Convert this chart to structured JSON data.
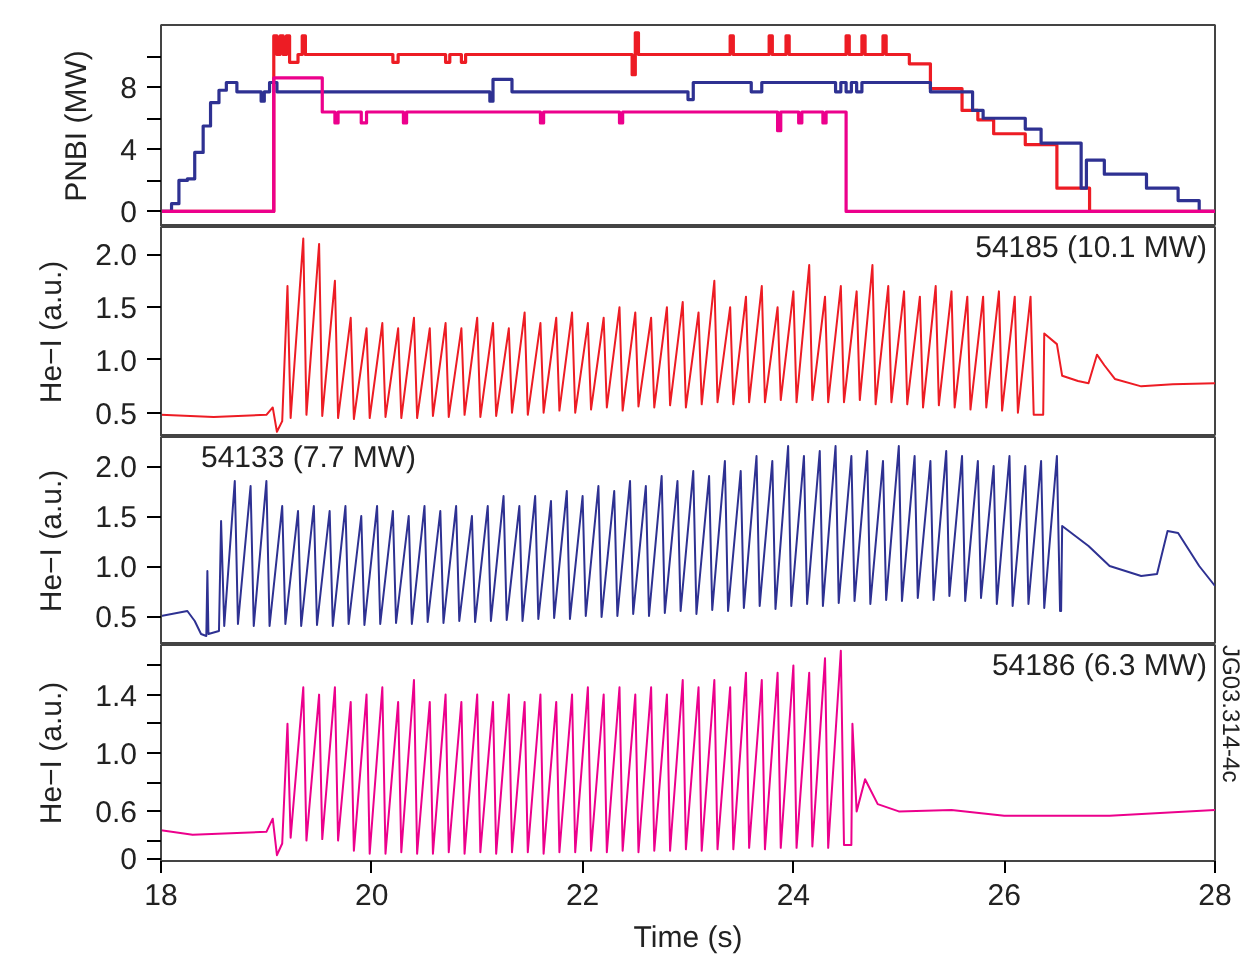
{
  "chart_data": [
    {
      "type": "step",
      "ylabel": "PNBI (MW)",
      "tick_labels": "y",
      "xlim": [
        18,
        28
      ],
      "ylim": [
        -1.0,
        12.0
      ],
      "yticks": [
        0,
        {
          "value": 2,
          "label": null
        },
        4,
        {
          "value": 6,
          "label": null
        },
        8,
        {
          "value": 10,
          "label": null
        }
      ],
      "series": [
        {
          "color": "#ed1c24",
          "x": [
            18,
            19.07,
            19.1,
            19.13,
            19.16,
            19.19,
            19.22,
            19.3,
            19.34,
            19.37,
            20.2,
            20.25,
            20.7,
            20.74,
            20.85,
            20.89,
            22.47,
            22.5,
            22.53,
            23.4,
            23.43,
            23.77,
            23.8,
            23.93,
            23.96,
            24.5,
            24.53,
            24.65,
            24.68,
            24.85,
            24.88,
            25.1,
            25.3,
            25.6,
            25.75,
            25.9,
            26.2,
            26.5,
            26.81,
            28
          ],
          "values": [
            0,
            11.3,
            10.1,
            11.3,
            10.1,
            11.3,
            9.6,
            10.1,
            11.3,
            10.1,
            9.6,
            10.1,
            9.6,
            10.1,
            9.6,
            10.1,
            8.8,
            11.5,
            10.1,
            11.3,
            10.1,
            11.3,
            10.1,
            11.3,
            10.1,
            11.3,
            10.1,
            11.3,
            10.1,
            11.3,
            10.1,
            9.5,
            7.9,
            6.5,
            5.9,
            5.0,
            4.3,
            1.5,
            0,
            0
          ]
        },
        {
          "color": "#2e3192",
          "x": [
            18,
            18.1,
            18.17,
            18.25,
            18.32,
            18.4,
            18.47,
            18.55,
            18.62,
            18.72,
            18.95,
            18.98,
            19.03,
            19.1,
            21.12,
            21.15,
            21.33,
            23.0,
            23.05,
            23.6,
            23.7,
            24.4,
            24.45,
            24.5,
            24.55,
            24.6,
            24.65,
            25.3,
            25.7,
            25.8,
            26.2,
            26.35,
            26.73,
            26.78,
            26.95,
            27.35,
            27.65,
            27.85,
            28
          ],
          "values": [
            0,
            0.5,
            2.0,
            2.1,
            3.8,
            5.5,
            7.0,
            7.8,
            8.3,
            7.7,
            7.1,
            7.7,
            8.3,
            7.7,
            7.1,
            8.5,
            7.7,
            7.2,
            8.3,
            7.7,
            8.3,
            7.7,
            8.3,
            7.7,
            8.3,
            7.7,
            8.3,
            7.7,
            6.5,
            6.0,
            5.3,
            4.4,
            1.5,
            3.3,
            2.4,
            1.5,
            0.7,
            0,
            0
          ]
        },
        {
          "color": "#ec008c",
          "x": [
            18,
            19.07,
            19.53,
            19.65,
            19.68,
            19.9,
            19.95,
            20.3,
            20.33,
            21.6,
            21.63,
            22.35,
            22.38,
            23.85,
            23.88,
            24.05,
            24.08,
            24.28,
            24.31,
            24.5,
            28
          ],
          "values": [
            0,
            8.6,
            6.4,
            5.7,
            6.4,
            5.7,
            6.4,
            5.7,
            6.4,
            5.7,
            6.4,
            5.7,
            6.4,
            5.2,
            6.4,
            5.7,
            6.4,
            5.7,
            6.4,
            0,
            0
          ]
        }
      ]
    },
    {
      "type": "line",
      "ylabel": "He−I (a.u.)",
      "tick_labels": "y",
      "xlim": [
        18,
        28
      ],
      "ylim": [
        0.27,
        2.26
      ],
      "yticks": [
        0.5,
        {
          "value": 1.0,
          "label": "1.0"
        },
        1.5,
        {
          "value": 2.0,
          "label": "2.0"
        }
      ],
      "annotations": [
        "54185 (10.1 MW)"
      ],
      "series": [
        {
          "color": "#ed1c24",
          "x": [
            18,
            18.5,
            19.0,
            19.06,
            19.1,
            19.15,
            19.2,
            19.23,
            19.35,
            19.38,
            19.5,
            19.53,
            19.65,
            19.68,
            19.8,
            19.83,
            19.95,
            19.98,
            20.1,
            20.13,
            20.25,
            20.28,
            20.4,
            20.43,
            20.55,
            20.58,
            20.7,
            20.73,
            20.85,
            20.88,
            21.0,
            21.03,
            21.15,
            21.18,
            21.3,
            21.33,
            21.45,
            21.48,
            21.6,
            21.63,
            21.75,
            21.78,
            21.9,
            21.93,
            22.05,
            22.08,
            22.2,
            22.23,
            22.35,
            22.38,
            22.5,
            22.53,
            22.65,
            22.68,
            22.8,
            22.83,
            22.95,
            22.98,
            23.1,
            23.13,
            23.25,
            23.28,
            23.4,
            23.43,
            23.55,
            23.58,
            23.7,
            23.73,
            23.85,
            23.88,
            24.0,
            24.03,
            24.15,
            24.18,
            24.3,
            24.33,
            24.45,
            24.48,
            24.6,
            24.63,
            24.75,
            24.78,
            24.9,
            24.93,
            25.05,
            25.08,
            25.2,
            25.23,
            25.35,
            25.38,
            25.5,
            25.53,
            25.65,
            25.68,
            25.8,
            25.83,
            25.95,
            25.98,
            26.1,
            26.13,
            26.25,
            26.28,
            26.37,
            26.38,
            26.5,
            26.55,
            26.7,
            26.8,
            26.88,
            26.95,
            27.05,
            27.3,
            27.6,
            28
          ],
          "values": [
            0.48,
            0.46,
            0.48,
            0.55,
            0.32,
            0.42,
            1.7,
            0.45,
            2.15,
            0.48,
            2.1,
            0.47,
            1.75,
            0.45,
            1.4,
            0.44,
            1.3,
            0.45,
            1.35,
            0.46,
            1.3,
            0.45,
            1.4,
            0.45,
            1.3,
            0.47,
            1.35,
            0.46,
            1.3,
            0.48,
            1.4,
            0.46,
            1.35,
            0.47,
            1.3,
            0.5,
            1.45,
            0.48,
            1.35,
            0.5,
            1.4,
            0.52,
            1.45,
            0.5,
            1.35,
            0.53,
            1.4,
            0.55,
            1.5,
            0.52,
            1.45,
            0.56,
            1.4,
            0.55,
            1.5,
            0.57,
            1.55,
            0.55,
            1.45,
            0.58,
            1.75,
            0.6,
            1.5,
            0.58,
            1.6,
            0.6,
            1.7,
            0.6,
            1.5,
            0.62,
            1.65,
            0.6,
            1.9,
            0.62,
            1.6,
            0.6,
            1.7,
            0.6,
            1.65,
            0.62,
            1.9,
            0.58,
            1.7,
            0.6,
            1.65,
            0.58,
            1.6,
            0.55,
            1.7,
            0.57,
            1.65,
            0.55,
            1.6,
            0.53,
            1.6,
            0.55,
            1.65,
            0.52,
            1.6,
            0.5,
            1.6,
            0.48,
            0.48,
            1.25,
            1.15,
            0.85,
            0.8,
            0.78,
            1.05,
            0.95,
            0.82,
            0.75,
            0.77,
            0.78
          ]
        }
      ]
    },
    {
      "type": "line",
      "ylabel": "He−I (a.u.)",
      "tick_labels": "y",
      "xlim": [
        18,
        28
      ],
      "ylim": [
        0.21,
        2.29
      ],
      "yticks": [
        0.5,
        {
          "value": 1.0,
          "label": "1.0"
        },
        1.5,
        {
          "value": 2.0,
          "label": "2.0"
        }
      ],
      "annotations": [
        "54133 (7.7 MW)"
      ],
      "series": [
        {
          "color": "#2e3192",
          "x": [
            18,
            18.25,
            18.32,
            18.38,
            18.43,
            18.44,
            18.45,
            18.55,
            18.57,
            18.6,
            18.7,
            18.73,
            18.85,
            18.88,
            19.0,
            19.03,
            19.15,
            19.18,
            19.3,
            19.33,
            19.45,
            19.48,
            19.6,
            19.63,
            19.75,
            19.78,
            19.9,
            19.93,
            20.05,
            20.08,
            20.2,
            20.23,
            20.35,
            20.38,
            20.5,
            20.53,
            20.65,
            20.68,
            20.8,
            20.83,
            20.95,
            20.98,
            21.1,
            21.13,
            21.25,
            21.28,
            21.4,
            21.43,
            21.55,
            21.58,
            21.7,
            21.73,
            21.85,
            21.88,
            22.0,
            22.03,
            22.15,
            22.18,
            22.3,
            22.33,
            22.45,
            22.48,
            22.6,
            22.63,
            22.75,
            22.78,
            22.9,
            22.93,
            23.05,
            23.08,
            23.2,
            23.23,
            23.35,
            23.38,
            23.5,
            23.53,
            23.65,
            23.68,
            23.8,
            23.83,
            23.95,
            23.98,
            24.1,
            24.13,
            24.25,
            24.28,
            24.4,
            24.43,
            24.55,
            24.58,
            24.7,
            24.73,
            24.85,
            24.88,
            25.0,
            25.03,
            25.15,
            25.18,
            25.3,
            25.33,
            25.45,
            25.48,
            25.6,
            25.63,
            25.75,
            25.78,
            25.9,
            25.93,
            26.05,
            26.08,
            26.2,
            26.23,
            26.35,
            26.38,
            26.5,
            26.53,
            26.54,
            26.55,
            26.8,
            27.0,
            27.3,
            27.45,
            27.55,
            27.65,
            27.85,
            28
          ],
          "values": [
            0.5,
            0.55,
            0.45,
            0.32,
            0.3,
            0.95,
            0.32,
            0.35,
            1.45,
            0.4,
            1.85,
            0.42,
            1.8,
            0.4,
            1.85,
            0.4,
            1.6,
            0.42,
            1.55,
            0.4,
            1.6,
            0.41,
            1.55,
            0.4,
            1.6,
            0.42,
            1.5,
            0.41,
            1.6,
            0.42,
            1.55,
            0.43,
            1.5,
            0.42,
            1.6,
            0.44,
            1.55,
            0.43,
            1.6,
            0.45,
            1.5,
            0.44,
            1.6,
            0.45,
            1.7,
            0.46,
            1.6,
            0.45,
            1.7,
            0.47,
            1.65,
            0.48,
            1.75,
            0.47,
            1.7,
            0.5,
            1.8,
            0.49,
            1.75,
            0.5,
            1.85,
            0.52,
            1.8,
            0.5,
            1.9,
            0.53,
            1.85,
            0.55,
            1.95,
            0.52,
            1.9,
            0.56,
            2.05,
            0.55,
            1.95,
            0.58,
            2.1,
            0.6,
            2.05,
            0.57,
            2.2,
            0.6,
            2.1,
            0.62,
            2.15,
            0.6,
            2.2,
            0.63,
            2.1,
            0.65,
            2.15,
            0.62,
            2.05,
            0.66,
            2.2,
            0.65,
            2.1,
            0.68,
            2.05,
            0.66,
            2.15,
            0.7,
            2.1,
            0.65,
            2.05,
            0.68,
            2.0,
            0.62,
            2.1,
            0.6,
            2.0,
            0.62,
            2.05,
            0.58,
            2.1,
            0.55,
            0.55,
            1.4,
            1.2,
            1.0,
            0.9,
            0.92,
            1.35,
            1.33,
            1.0,
            0.8
          ]
        }
      ]
    },
    {
      "type": "line",
      "xlabel": "Time (s)",
      "ylabel": "He−I (a.u.)",
      "xlim": [
        18,
        28
      ],
      "xticks": [
        18,
        20,
        22,
        24,
        26,
        28
      ],
      "ylim": [
        0.26,
        1.74
      ],
      "yticks": [
        {
          "value": 0.28,
          "label": "0"
        },
        {
          "value": 0.4,
          "label": null
        },
        0.6,
        {
          "value": 0.8,
          "label": null
        },
        {
          "value": 1.0,
          "label": "1.0"
        },
        {
          "value": 1.2,
          "label": null
        },
        1.4,
        {
          "value": 1.6,
          "label": null
        }
      ],
      "annotations": [
        "54186 (6.3 MW)",
        "JG03.314-4c"
      ],
      "series": [
        {
          "color": "#ec008c",
          "x": [
            18,
            18.3,
            19.0,
            19.06,
            19.1,
            19.15,
            19.2,
            19.23,
            19.35,
            19.38,
            19.5,
            19.53,
            19.65,
            19.68,
            19.8,
            19.83,
            19.95,
            19.98,
            20.1,
            20.13,
            20.25,
            20.28,
            20.4,
            20.43,
            20.55,
            20.58,
            20.7,
            20.73,
            20.85,
            20.88,
            21.0,
            21.03,
            21.15,
            21.18,
            21.3,
            21.33,
            21.45,
            21.48,
            21.6,
            21.63,
            21.75,
            21.78,
            21.9,
            21.93,
            22.05,
            22.08,
            22.2,
            22.23,
            22.35,
            22.38,
            22.5,
            22.53,
            22.65,
            22.68,
            22.8,
            22.83,
            22.95,
            22.98,
            23.1,
            23.13,
            23.25,
            23.28,
            23.4,
            23.43,
            23.55,
            23.58,
            23.7,
            23.73,
            23.85,
            23.88,
            24.0,
            24.03,
            24.15,
            24.18,
            24.3,
            24.33,
            24.45,
            24.48,
            24.55,
            24.56,
            24.6,
            24.68,
            24.8,
            25.0,
            25.5,
            26.0,
            27.0,
            28
          ],
          "values": [
            0.47,
            0.44,
            0.46,
            0.55,
            0.3,
            0.38,
            1.2,
            0.42,
            1.45,
            0.4,
            1.4,
            0.41,
            1.45,
            0.4,
            1.35,
            0.33,
            1.4,
            0.31,
            1.45,
            0.31,
            1.35,
            0.32,
            1.5,
            0.31,
            1.35,
            0.31,
            1.4,
            0.32,
            1.35,
            0.31,
            1.4,
            0.32,
            1.35,
            0.31,
            1.4,
            0.32,
            1.35,
            0.32,
            1.4,
            0.31,
            1.35,
            0.32,
            1.4,
            0.32,
            1.45,
            0.33,
            1.4,
            0.32,
            1.45,
            0.33,
            1.4,
            0.32,
            1.45,
            0.33,
            1.4,
            0.33,
            1.5,
            0.34,
            1.45,
            0.33,
            1.5,
            0.34,
            1.45,
            0.34,
            1.55,
            0.35,
            1.5,
            0.34,
            1.55,
            0.35,
            1.6,
            0.35,
            1.55,
            0.36,
            1.65,
            0.35,
            1.7,
            0.37,
            0.37,
            1.2,
            0.6,
            0.82,
            0.65,
            0.6,
            0.61,
            0.57,
            0.57,
            0.61
          ]
        }
      ]
    }
  ]
}
